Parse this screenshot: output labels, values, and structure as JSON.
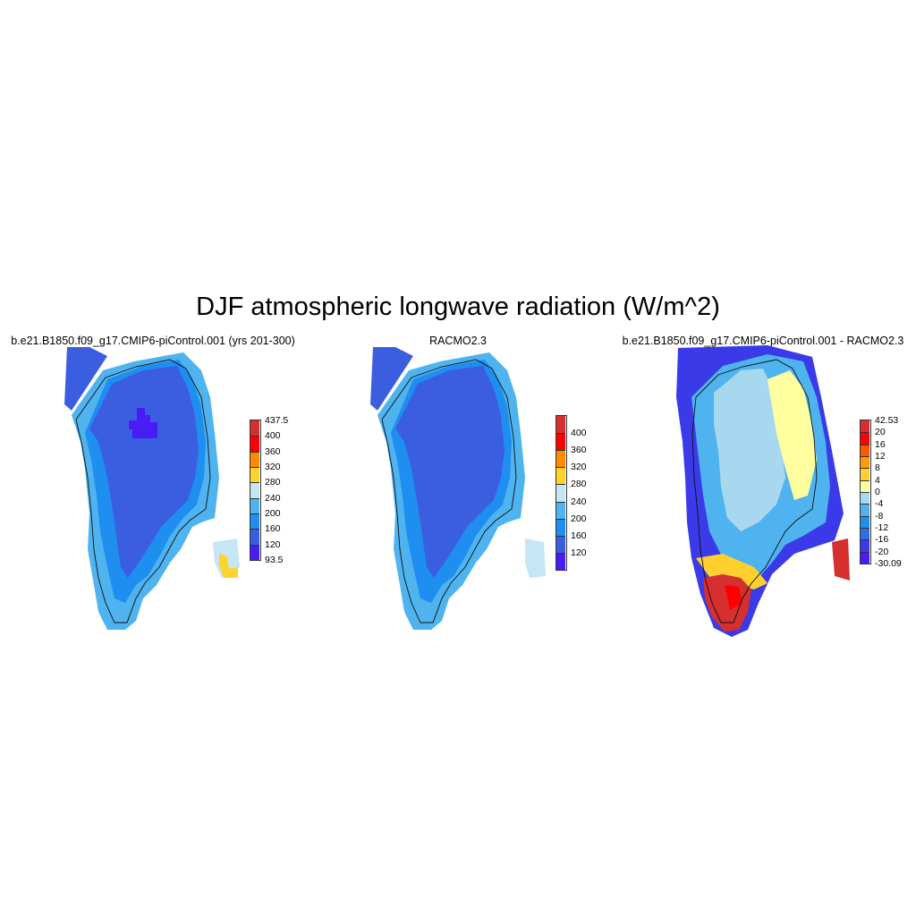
{
  "title": "DJF atmospheric longwave radiation (W/m^2)",
  "panels": [
    {
      "title": "b.e21.B1850.f09_g17.CMIP6-piControl.001 (yrs 201-300)",
      "colorbar": {
        "labels": [
          "437.5",
          "400",
          "360",
          "320",
          "280",
          "240",
          "200",
          "160",
          "120",
          "93.5"
        ],
        "colors": [
          "#d62f2f",
          "#ff0000",
          "#ff8c00",
          "#ffd42a",
          "#c6e5f5",
          "#4eb3ee",
          "#1e8ef0",
          "#3b5ee0",
          "#4a1cf5"
        ]
      }
    },
    {
      "title": "RACMO2.3",
      "colorbar": {
        "labels": [
          "400",
          "360",
          "320",
          "280",
          "240",
          "200",
          "160",
          "120"
        ],
        "colors": [
          "#d62f2f",
          "#ff0000",
          "#ff8c00",
          "#ffd42a",
          "#c6e5f5",
          "#4eb3ee",
          "#1e8ef0",
          "#3b5ee0",
          "#4a1cf5"
        ]
      }
    },
    {
      "title": "b.e21.B1850.f09_g17.CMIP6-piControl.001 - RACMO2.3",
      "colorbar": {
        "labels": [
          "42.53",
          "20",
          "16",
          "12",
          "8",
          "4",
          "0",
          "-4",
          "-8",
          "-12",
          "-16",
          "-20",
          "-30.09"
        ],
        "colors": [
          "#d62f2f",
          "#ff0000",
          "#ff5a00",
          "#ff9a00",
          "#ffcf30",
          "#ffffa0",
          "#a8d8f0",
          "#4eb3ee",
          "#1e8ef0",
          "#2a6ee8",
          "#3a3ae8",
          "#4a1cf5"
        ]
      }
    }
  ]
}
